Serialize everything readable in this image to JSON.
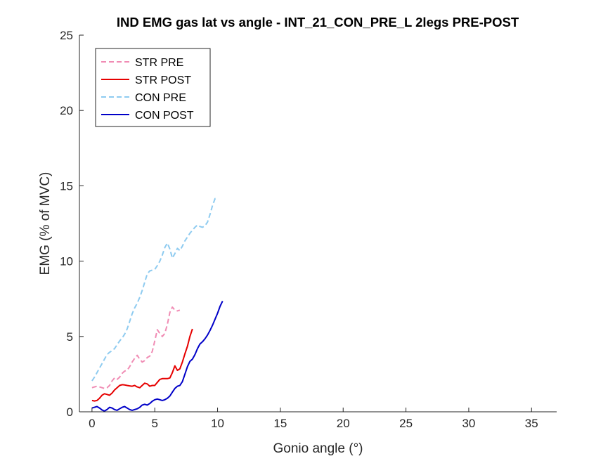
{
  "chart_data": {
    "type": "line",
    "title": "IND EMG gas lat vs angle - INT_21_CON_PRE_L 2legs PRE-POST",
    "xlabel": "Gonio angle (°)",
    "ylabel": "EMG (% of MVC)",
    "xlim": [
      -1,
      37
    ],
    "ylim": [
      0,
      25
    ],
    "xticks": [
      0,
      5,
      10,
      15,
      20,
      25,
      30,
      35
    ],
    "yticks": [
      0,
      5,
      10,
      15,
      20,
      25
    ],
    "xtick_labels": [
      "0",
      "5",
      "10",
      "15",
      "20",
      "25",
      "30",
      "35"
    ],
    "ytick_labels": [
      "0",
      "5",
      "10",
      "15",
      "20",
      "25"
    ],
    "grid": false,
    "legend_position": "top-left",
    "series": [
      {
        "name": "STR PRE",
        "color": "#f08cb4",
        "style": "dashed",
        "x": [
          0,
          0.2,
          0.4,
          0.6,
          0.8,
          1.0,
          1.2,
          1.4,
          1.6,
          1.8,
          2.0,
          2.2,
          2.4,
          2.6,
          2.8,
          3.0,
          3.2,
          3.4,
          3.6,
          3.8,
          4.0,
          4.2,
          4.4,
          4.6,
          4.8,
          5.0,
          5.2,
          5.4,
          5.6,
          5.8,
          6.0,
          6.2,
          6.4,
          6.6,
          6.8,
          7.0
        ],
        "y": [
          1.6,
          1.65,
          1.7,
          1.65,
          1.6,
          1.55,
          1.6,
          1.75,
          2.05,
          2.25,
          2.15,
          2.3,
          2.55,
          2.7,
          2.75,
          3.0,
          3.3,
          3.55,
          3.75,
          3.5,
          3.3,
          3.4,
          3.6,
          3.7,
          4.0,
          4.7,
          5.45,
          5.2,
          5.0,
          5.2,
          5.8,
          6.6,
          6.95,
          6.75,
          6.7,
          6.75
        ]
      },
      {
        "name": "STR POST",
        "color": "#e60000",
        "style": "solid",
        "x": [
          0,
          0.2,
          0.4,
          0.6,
          0.8,
          1.0,
          1.2,
          1.4,
          1.6,
          1.8,
          2.0,
          2.2,
          2.4,
          2.6,
          2.8,
          3.0,
          3.2,
          3.4,
          3.6,
          3.8,
          4.0,
          4.2,
          4.4,
          4.6,
          4.8,
          5.0,
          5.2,
          5.4,
          5.6,
          5.8,
          6.0,
          6.2,
          6.4,
          6.6,
          6.8,
          7.0,
          7.2,
          7.4,
          7.6,
          7.8,
          8.0
        ],
        "y": [
          0.75,
          0.72,
          0.75,
          0.9,
          1.1,
          1.2,
          1.15,
          1.1,
          1.25,
          1.45,
          1.6,
          1.75,
          1.8,
          1.78,
          1.75,
          1.72,
          1.7,
          1.75,
          1.65,
          1.6,
          1.75,
          1.9,
          1.85,
          1.7,
          1.75,
          1.75,
          1.95,
          2.15,
          2.2,
          2.2,
          2.2,
          2.25,
          2.6,
          3.05,
          2.75,
          2.85,
          3.3,
          3.85,
          4.35,
          5.0,
          5.5
        ]
      },
      {
        "name": "CON PRE",
        "color": "#8ecbf0",
        "style": "dashed",
        "x": [
          0,
          0.2,
          0.4,
          0.6,
          0.8,
          1.0,
          1.2,
          1.4,
          1.6,
          1.8,
          2.0,
          2.2,
          2.4,
          2.6,
          2.8,
          3.0,
          3.2,
          3.4,
          3.6,
          3.8,
          4.0,
          4.2,
          4.4,
          4.6,
          4.8,
          5.0,
          5.2,
          5.4,
          5.6,
          5.8,
          6.0,
          6.2,
          6.4,
          6.6,
          6.8,
          7.0,
          7.2,
          7.4,
          7.6,
          7.8,
          8.0,
          8.2,
          8.4,
          8.6,
          8.8,
          9.0,
          9.2,
          9.4,
          9.6,
          9.8,
          10.0
        ],
        "y": [
          2.05,
          2.3,
          2.6,
          2.9,
          3.2,
          3.5,
          3.8,
          3.95,
          4.05,
          4.2,
          4.45,
          4.7,
          4.9,
          5.15,
          5.5,
          6.0,
          6.5,
          6.9,
          7.2,
          7.6,
          8.05,
          8.6,
          9.15,
          9.35,
          9.4,
          9.45,
          9.7,
          10.0,
          10.4,
          10.9,
          11.2,
          10.8,
          10.2,
          10.5,
          10.85,
          10.7,
          11.0,
          11.35,
          11.6,
          11.85,
          12.05,
          12.25,
          12.4,
          12.3,
          12.25,
          12.35,
          12.6,
          13.1,
          13.7,
          14.15,
          14.05
        ]
      },
      {
        "name": "CON POST",
        "color": "#0000c8",
        "style": "solid",
        "x": [
          0,
          0.2,
          0.4,
          0.6,
          0.8,
          1.0,
          1.2,
          1.4,
          1.6,
          1.8,
          2.0,
          2.2,
          2.4,
          2.6,
          2.8,
          3.0,
          3.2,
          3.4,
          3.6,
          3.8,
          4.0,
          4.2,
          4.4,
          4.6,
          4.8,
          5.0,
          5.2,
          5.4,
          5.6,
          5.8,
          6.0,
          6.2,
          6.4,
          6.6,
          6.8,
          7.0,
          7.2,
          7.4,
          7.6,
          7.8,
          8.0,
          8.2,
          8.4,
          8.6,
          8.8,
          9.0,
          9.2,
          9.4,
          9.6,
          9.8,
          10.0,
          10.2,
          10.4
        ],
        "y": [
          0.25,
          0.3,
          0.35,
          0.25,
          0.12,
          0.05,
          0.15,
          0.3,
          0.25,
          0.15,
          0.1,
          0.2,
          0.3,
          0.35,
          0.25,
          0.15,
          0.1,
          0.15,
          0.2,
          0.3,
          0.45,
          0.5,
          0.45,
          0.55,
          0.7,
          0.8,
          0.85,
          0.8,
          0.75,
          0.8,
          0.9,
          1.05,
          1.3,
          1.55,
          1.7,
          1.75,
          2.0,
          2.5,
          3.0,
          3.35,
          3.5,
          3.8,
          4.2,
          4.5,
          4.65,
          4.85,
          5.1,
          5.4,
          5.75,
          6.15,
          6.55,
          7.0,
          7.35
        ]
      }
    ]
  }
}
